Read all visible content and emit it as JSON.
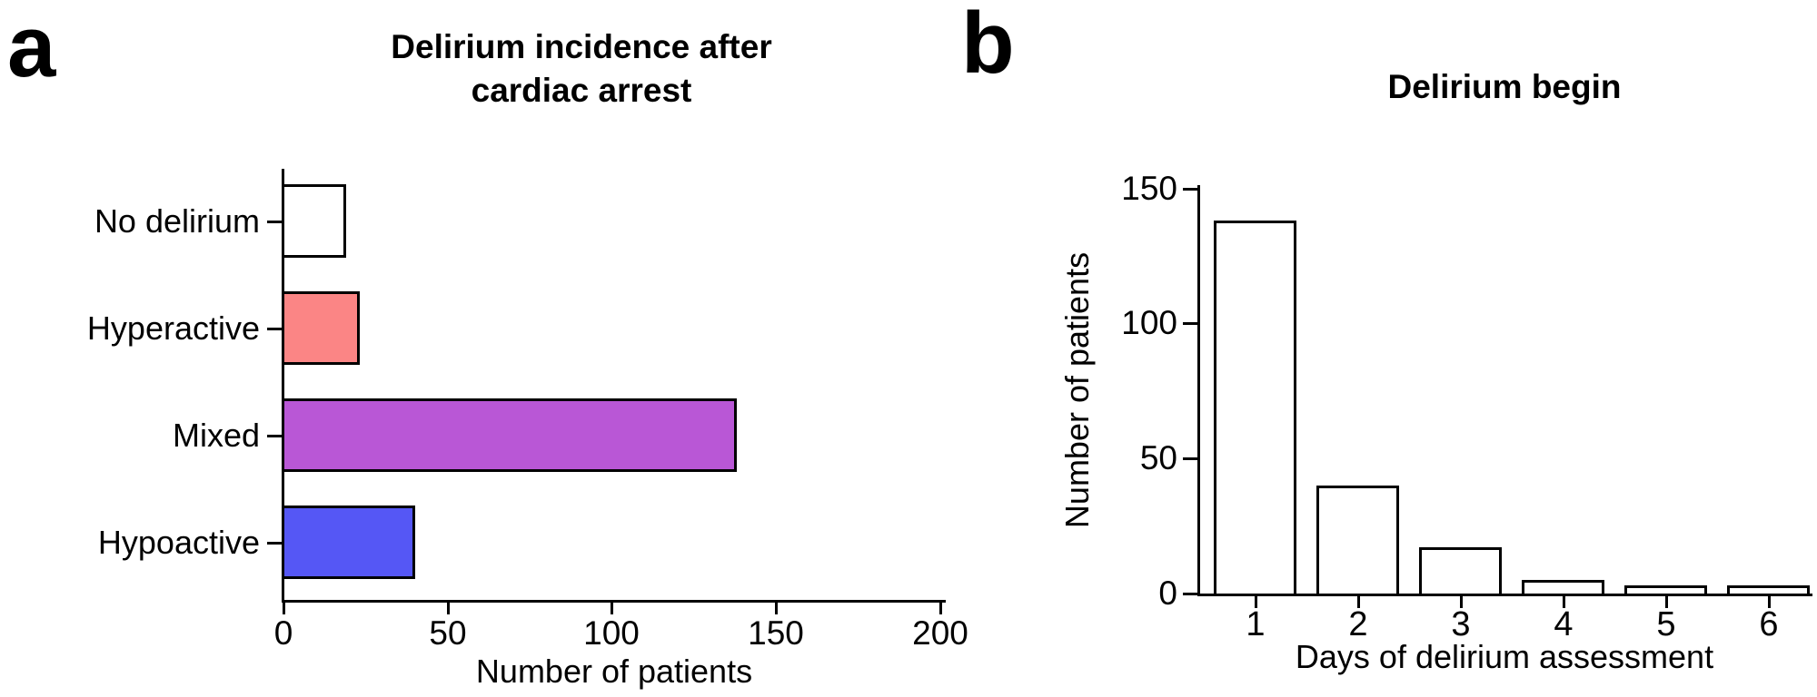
{
  "figure": {
    "background": "#ffffff",
    "axis_color": "#000000",
    "text_color": "#000000"
  },
  "chart_data": [
    {
      "type": "bar",
      "orientation": "horizontal",
      "panel_label": "a",
      "title": "Delirium incidence after cardiac arrest",
      "title_lines": [
        "Delirium incidence after",
        "cardiac arrest"
      ],
      "categories": [
        "No delirium",
        "Hyperactive",
        "Mixed",
        "Hypoactive"
      ],
      "values": [
        18,
        22,
        137,
        39
      ],
      "bar_colors": [
        "#FFFFFF",
        "#FB8585",
        "#B957D6",
        "#5557F5"
      ],
      "bar_border_color": "#000000",
      "xlabel": "Number of patients",
      "xlim": [
        0,
        200
      ],
      "xticks": [
        0,
        50,
        100,
        150,
        200
      ],
      "grid": false,
      "legend": false
    },
    {
      "type": "bar",
      "orientation": "vertical",
      "panel_label": "b",
      "title": "Delirium begin",
      "categories": [
        "1",
        "2",
        "3",
        "4",
        "5",
        "6"
      ],
      "values": [
        137,
        39,
        16,
        4,
        2,
        2
      ],
      "bar_colors": [
        "#FFFFFF",
        "#FFFFFF",
        "#FFFFFF",
        "#FFFFFF",
        "#FFFFFF",
        "#FFFFFF"
      ],
      "bar_border_color": "#000000",
      "xlabel": "Days of delirium assessment",
      "ylabel": "Number of patients",
      "ylim": [
        0,
        150
      ],
      "yticks": [
        0,
        50,
        100,
        150
      ],
      "grid": false,
      "legend": false
    }
  ]
}
